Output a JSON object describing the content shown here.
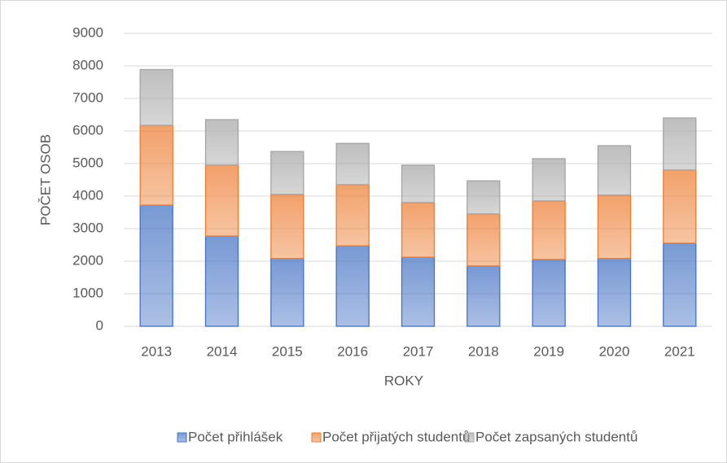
{
  "chart_data": {
    "type": "stacked_bar",
    "x_label": "ROKY",
    "y_label": "POČET OSOB",
    "categories": [
      "2013",
      "2014",
      "2015",
      "2016",
      "2017",
      "2018",
      "2019",
      "2020",
      "2021"
    ],
    "series": [
      {
        "name": "Počet přihlášek",
        "color": "#4472c4",
        "values": [
          3720,
          2770,
          2080,
          2470,
          2120,
          1850,
          2050,
          2080,
          2550
        ]
      },
      {
        "name": "Počet přijatých studentů",
        "color": "#ed7d31",
        "values": [
          2450,
          2180,
          1970,
          1880,
          1680,
          1600,
          1800,
          1950,
          2250
        ]
      },
      {
        "name": "Počet zapsaných studentů",
        "color": "#a5a5a5",
        "values": [
          1720,
          1400,
          1320,
          1270,
          1150,
          1020,
          1300,
          1520,
          1600
        ]
      }
    ],
    "ylim": [
      0,
      9000
    ],
    "yticks": [
      0,
      1000,
      2000,
      3000,
      4000,
      5000,
      6000,
      7000,
      8000,
      9000
    ],
    "grid": true,
    "legend": "bottom"
  }
}
